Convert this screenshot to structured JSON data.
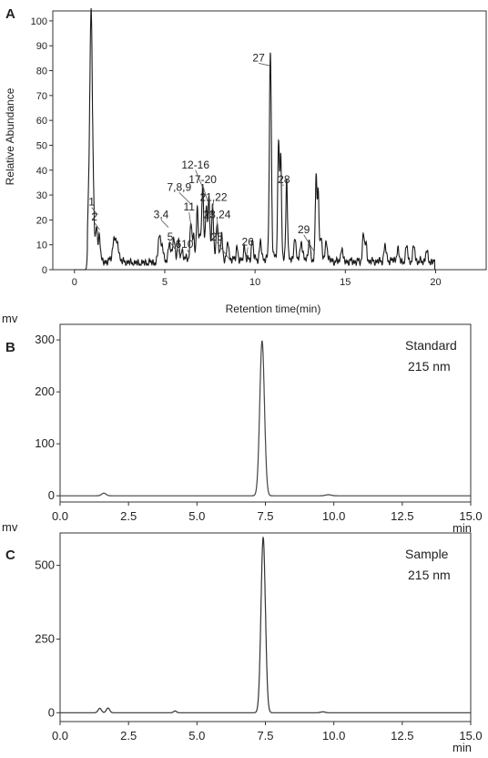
{
  "panels": {
    "A": {
      "letter": "A"
    },
    "B": {
      "letter": "B"
    },
    "C": {
      "letter": "C"
    }
  },
  "chart_data": [
    {
      "panel": "A",
      "type": "line",
      "xlabel": "Retention time(min)",
      "ylabel": "Relative Abundance",
      "xlim": [
        -1.2,
        22.8
      ],
      "ylim": [
        0,
        104
      ],
      "xticks": [
        0,
        5,
        10,
        15,
        20
      ],
      "yticks": [
        0,
        10,
        20,
        30,
        40,
        50,
        60,
        70,
        80,
        90,
        100
      ],
      "grid": false,
      "color": "#1a1a1a",
      "baseline": 1.5,
      "noise": [
        {
          "t": 1.1,
          "v": 4
        },
        {
          "t": 1.5,
          "v": 3
        },
        {
          "t": 1.9,
          "v": 3
        },
        {
          "t": 2.25,
          "v": 6
        },
        {
          "t": 2.6,
          "v": 3
        },
        {
          "t": 3.1,
          "v": 2.5
        },
        {
          "t": 3.6,
          "v": 2.2
        },
        {
          "t": 4.1,
          "v": 2.5
        },
        {
          "t": 5.0,
          "v": 3
        },
        {
          "t": 5.35,
          "v": 4
        },
        {
          "t": 5.7,
          "v": 4
        },
        {
          "t": 6.1,
          "v": 4
        },
        {
          "t": 6.5,
          "v": 5
        },
        {
          "t": 7.8,
          "v": 5
        },
        {
          "t": 8.2,
          "v": 4
        },
        {
          "t": 8.6,
          "v": 4
        },
        {
          "t": 9.2,
          "v": 3
        },
        {
          "t": 9.7,
          "v": 4
        },
        {
          "t": 10.4,
          "v": 4
        },
        {
          "t": 11.0,
          "v": 5
        },
        {
          "t": 12.0,
          "v": 4
        },
        {
          "t": 12.6,
          "v": 5
        },
        {
          "t": 13.0,
          "v": 4
        },
        {
          "t": 13.9,
          "v": 4
        },
        {
          "t": 14.4,
          "v": 3
        },
        {
          "t": 15.0,
          "v": 3
        },
        {
          "t": 15.5,
          "v": 3
        },
        {
          "t": 16.4,
          "v": 3
        },
        {
          "t": 16.8,
          "v": 3
        },
        {
          "t": 17.5,
          "v": 3.5
        },
        {
          "t": 18.0,
          "v": 3
        },
        {
          "t": 18.5,
          "v": 3
        },
        {
          "t": 19.2,
          "v": 3
        },
        {
          "t": 19.6,
          "v": 3
        }
      ],
      "peaks": [
        {
          "t": 0.78,
          "h": 17,
          "w": 0.05
        },
        {
          "t": 0.92,
          "h": 100,
          "w": 0.07
        },
        {
          "t": 1.05,
          "h": 16,
          "w": 0.05
        },
        {
          "t": 1.22,
          "h": 14,
          "w": 0.05
        },
        {
          "t": 1.38,
          "h": 11,
          "w": 0.05
        },
        {
          "t": 2.2,
          "h": 7,
          "w": 0.08
        },
        {
          "t": 2.4,
          "h": 5,
          "w": 0.07
        },
        {
          "t": 4.7,
          "h": 11,
          "w": 0.06
        },
        {
          "t": 4.85,
          "h": 7,
          "w": 0.06
        },
        {
          "t": 5.25,
          "h": 7,
          "w": 0.06
        },
        {
          "t": 5.5,
          "h": 9,
          "w": 0.06
        },
        {
          "t": 5.75,
          "h": 7,
          "w": 0.05
        },
        {
          "t": 5.95,
          "h": 4,
          "w": 0.05
        },
        {
          "t": 6.45,
          "h": 14,
          "w": 0.05
        },
        {
          "t": 6.6,
          "h": 8,
          "w": 0.05
        },
        {
          "t": 6.8,
          "h": 19,
          "w": 0.05
        },
        {
          "t": 6.95,
          "h": 8,
          "w": 0.05
        },
        {
          "t": 7.1,
          "h": 30,
          "w": 0.05
        },
        {
          "t": 7.3,
          "h": 20,
          "w": 0.05
        },
        {
          "t": 7.45,
          "h": 24,
          "w": 0.05
        },
        {
          "t": 7.65,
          "h": 20,
          "w": 0.05
        },
        {
          "t": 7.9,
          "h": 15,
          "w": 0.05
        },
        {
          "t": 8.15,
          "h": 10,
          "w": 0.05
        },
        {
          "t": 8.5,
          "h": 7,
          "w": 0.05
        },
        {
          "t": 9.0,
          "h": 6,
          "w": 0.05
        },
        {
          "t": 9.4,
          "h": 6,
          "w": 0.05
        },
        {
          "t": 9.85,
          "h": 8,
          "w": 0.05
        },
        {
          "t": 10.3,
          "h": 7,
          "w": 0.05
        },
        {
          "t": 10.85,
          "h": 82,
          "w": 0.055
        },
        {
          "t": 11.3,
          "h": 47,
          "w": 0.045
        },
        {
          "t": 11.42,
          "h": 40,
          "w": 0.045
        },
        {
          "t": 11.75,
          "h": 32,
          "w": 0.045
        },
        {
          "t": 12.2,
          "h": 8,
          "w": 0.05
        },
        {
          "t": 12.55,
          "h": 6,
          "w": 0.05
        },
        {
          "t": 13.0,
          "h": 7,
          "w": 0.05
        },
        {
          "t": 13.38,
          "h": 33,
          "w": 0.045
        },
        {
          "t": 13.5,
          "h": 26,
          "w": 0.045
        },
        {
          "t": 13.65,
          "h": 9,
          "w": 0.05
        },
        {
          "t": 13.95,
          "h": 8,
          "w": 0.05
        },
        {
          "t": 14.8,
          "h": 6,
          "w": 0.05
        },
        {
          "t": 16.0,
          "h": 12,
          "w": 0.05
        },
        {
          "t": 16.15,
          "h": 7,
          "w": 0.05
        },
        {
          "t": 17.2,
          "h": 6,
          "w": 0.06
        },
        {
          "t": 17.9,
          "h": 5,
          "w": 0.06
        },
        {
          "t": 18.4,
          "h": 6,
          "w": 0.06
        },
        {
          "t": 18.8,
          "h": 6,
          "w": 0.06
        },
        {
          "t": 19.5,
          "h": 4,
          "w": 0.06
        }
      ],
      "annotations": [
        {
          "label": "1",
          "x": 0.95,
          "y": 25,
          "tx": 1.3,
          "ty": 22
        },
        {
          "label": "2",
          "x": 1.1,
          "y": 19,
          "tx": 1.4,
          "ty": 16
        },
        {
          "label": "3,4",
          "x": 4.8,
          "y": 20,
          "tx": 5.2,
          "ty": 17
        },
        {
          "label": "5",
          "x": 5.3,
          "y": 11,
          "tx": 5.6,
          "ty": 8
        },
        {
          "label": "6",
          "x": 5.75,
          "y": 8,
          "tx": 5.85,
          "ty": 5
        },
        {
          "label": "10",
          "x": 6.25,
          "y": 8,
          "tx": 6.4,
          "ty": 6
        },
        {
          "label": "11",
          "x": 6.35,
          "y": 23,
          "tx": 6.5,
          "ty": 15
        },
        {
          "label": "7,8,9",
          "x": 5.8,
          "y": 31,
          "tx": 6.5,
          "ty": 26
        },
        {
          "label": "12-16",
          "x": 6.7,
          "y": 40,
          "tx": 7.1,
          "ty": 33
        },
        {
          "label": "17-20",
          "x": 7.1,
          "y": 34,
          "tx": 7.35,
          "ty": 28
        },
        {
          "label": "21,22",
          "x": 7.7,
          "y": 27,
          "tx": 7.55,
          "ty": 22
        },
        {
          "label": "23,24",
          "x": 7.9,
          "y": 20,
          "tx": 7.9,
          "ty": 14
        },
        {
          "label": "25",
          "x": 7.9,
          "y": 11,
          "tx": 8.6,
          "ty": 4
        },
        {
          "label": "26",
          "x": 9.6,
          "y": 9,
          "tx": 9.5,
          "ty": 4
        },
        {
          "label": "27",
          "x": 10.2,
          "y": 83,
          "tx": 10.8,
          "ty": 82
        },
        {
          "label": "28",
          "x": 11.6,
          "y": 34,
          "tx": 11.5,
          "ty": 34
        },
        {
          "label": "29",
          "x": 12.7,
          "y": 14,
          "tx": 13.3,
          "ty": 7
        }
      ]
    },
    {
      "panel": "B",
      "type": "line",
      "xlabel": "",
      "ylabel": "mv",
      "x_unit": "min",
      "xlim": [
        0,
        15
      ],
      "ylim": [
        -12,
        330
      ],
      "xticks": [
        "0.0",
        "2.5",
        "5.0",
        "7.5",
        "10.0",
        "12.5",
        "15.0"
      ],
      "yticks": [
        0,
        100,
        200,
        300
      ],
      "grid": false,
      "color": "#444444",
      "peaks": [
        {
          "t": 1.6,
          "h": 5,
          "w": 0.08
        },
        {
          "t": 7.38,
          "h": 298,
          "w": 0.085
        },
        {
          "t": 9.8,
          "h": 2,
          "w": 0.1
        }
      ],
      "legend_lines": [
        "Standard",
        "215 nm"
      ]
    },
    {
      "panel": "C",
      "type": "line",
      "xlabel": "",
      "ylabel": "mv",
      "x_unit": "min",
      "xlim": [
        0,
        15
      ],
      "ylim": [
        -30,
        610
      ],
      "xticks": [
        "0.0",
        "2.5",
        "5.0",
        "7.5",
        "10.0",
        "12.5",
        "15.0"
      ],
      "yticks": [
        0,
        250,
        500
      ],
      "grid": false,
      "color": "#333333",
      "peaks": [
        {
          "t": 1.45,
          "h": 15,
          "w": 0.06
        },
        {
          "t": 1.75,
          "h": 16,
          "w": 0.06
        },
        {
          "t": 4.2,
          "h": 6,
          "w": 0.05
        },
        {
          "t": 7.42,
          "h": 595,
          "w": 0.08
        },
        {
          "t": 9.6,
          "h": 3,
          "w": 0.08
        }
      ],
      "legend_lines": [
        "Sample",
        "215 nm"
      ]
    }
  ]
}
